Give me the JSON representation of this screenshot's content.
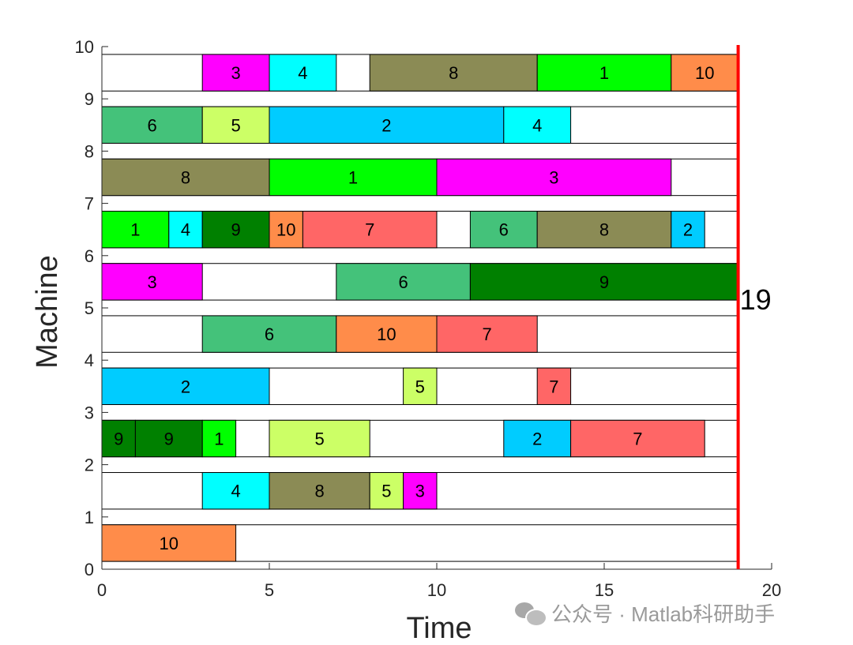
{
  "chart_data": {
    "type": "gantt",
    "title": "",
    "xlabel": "Time",
    "ylabel": "Machine",
    "xlim": [
      0,
      20
    ],
    "ylim": [
      0,
      10
    ],
    "xticks": [
      "0",
      "5",
      "10",
      "15",
      "20"
    ],
    "yticks": [
      "0",
      "1",
      "2",
      "3",
      "4",
      "5",
      "6",
      "7",
      "8",
      "9",
      "10"
    ],
    "makespan": 19,
    "makespan_label": "19",
    "makespan_color": "#ff0000",
    "job_colors": {
      "1": "#00ff00",
      "2": "#00ccff",
      "3": "#ff00ff",
      "4": "#00ffff",
      "5": "#ccff66",
      "6": "#44c27a",
      "7": "#ff6666",
      "8": "#8b8b55",
      "9": "#008000",
      "10": "#ff8c4a"
    },
    "machines": [
      {
        "machine": 1,
        "tasks": [
          {
            "job": "10",
            "start": 0,
            "end": 4
          }
        ]
      },
      {
        "machine": 2,
        "tasks": [
          {
            "job": "4",
            "start": 3,
            "end": 5
          },
          {
            "job": "8",
            "start": 5,
            "end": 8
          },
          {
            "job": "5",
            "start": 8,
            "end": 9
          },
          {
            "job": "3",
            "start": 9,
            "end": 10
          }
        ]
      },
      {
        "machine": 3,
        "tasks": [
          {
            "job": "9",
            "start": 0,
            "end": 1
          },
          {
            "job": "9",
            "start": 1,
            "end": 3
          },
          {
            "job": "1",
            "start": 3,
            "end": 4
          },
          {
            "job": "5",
            "start": 5,
            "end": 8
          },
          {
            "job": "2",
            "start": 12,
            "end": 14
          },
          {
            "job": "7",
            "start": 14,
            "end": 18
          }
        ]
      },
      {
        "machine": 4,
        "tasks": [
          {
            "job": "2",
            "start": 0,
            "end": 5
          },
          {
            "job": "5",
            "start": 9,
            "end": 10
          },
          {
            "job": "7",
            "start": 13,
            "end": 14
          }
        ]
      },
      {
        "machine": 5,
        "tasks": [
          {
            "job": "6",
            "start": 3,
            "end": 7
          },
          {
            "job": "10",
            "start": 7,
            "end": 10
          },
          {
            "job": "7",
            "start": 10,
            "end": 13
          }
        ]
      },
      {
        "machine": 6,
        "tasks": [
          {
            "job": "3",
            "start": 0,
            "end": 3
          },
          {
            "job": "6",
            "start": 7,
            "end": 11
          },
          {
            "job": "9",
            "start": 11,
            "end": 19
          }
        ]
      },
      {
        "machine": 7,
        "tasks": [
          {
            "job": "1",
            "start": 0,
            "end": 2
          },
          {
            "job": "4",
            "start": 2,
            "end": 3
          },
          {
            "job": "9",
            "start": 3,
            "end": 5
          },
          {
            "job": "10",
            "start": 5,
            "end": 6
          },
          {
            "job": "7",
            "start": 6,
            "end": 10
          },
          {
            "job": "6",
            "start": 11,
            "end": 13
          },
          {
            "job": "8",
            "start": 13,
            "end": 17
          },
          {
            "job": "2",
            "start": 17,
            "end": 18
          }
        ]
      },
      {
        "machine": 8,
        "tasks": [
          {
            "job": "8",
            "start": 0,
            "end": 5
          },
          {
            "job": "1",
            "start": 5,
            "end": 10
          },
          {
            "job": "3",
            "start": 10,
            "end": 17
          }
        ]
      },
      {
        "machine": 9,
        "tasks": [
          {
            "job": "6",
            "start": 0,
            "end": 3
          },
          {
            "job": "5",
            "start": 3,
            "end": 5
          },
          {
            "job": "2",
            "start": 5,
            "end": 12
          },
          {
            "job": "4",
            "start": 12,
            "end": 14
          }
        ]
      },
      {
        "machine": 10,
        "tasks": [
          {
            "job": "3",
            "start": 3,
            "end": 5
          },
          {
            "job": "4",
            "start": 5,
            "end": 7
          },
          {
            "job": "8",
            "start": 8,
            "end": 13
          },
          {
            "job": "1",
            "start": 13,
            "end": 17
          },
          {
            "job": "10",
            "start": 17,
            "end": 19
          }
        ]
      }
    ]
  },
  "watermark": {
    "icon": "wechat-icon",
    "text": "公众号 · Matlab科研助手"
  }
}
